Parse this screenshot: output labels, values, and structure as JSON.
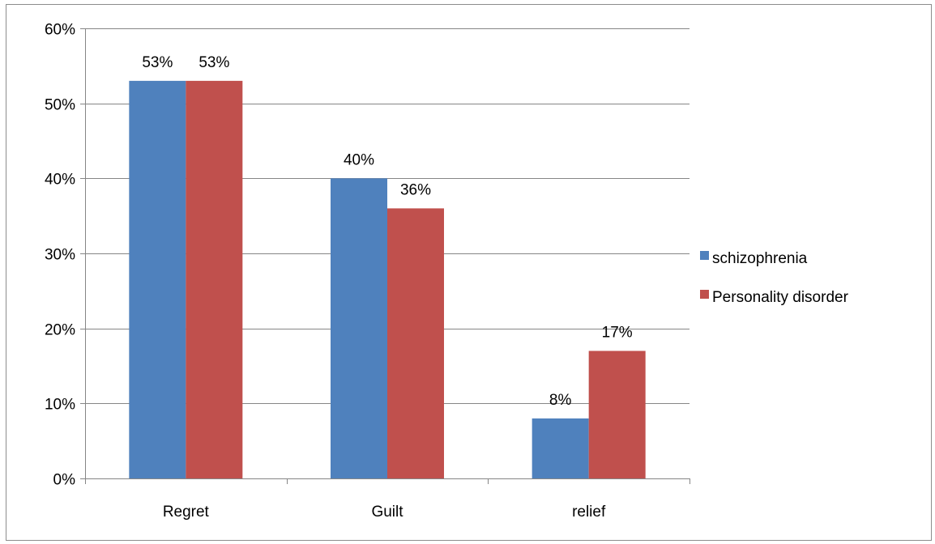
{
  "chart_data": {
    "type": "bar",
    "title": "",
    "xlabel": "",
    "ylabel": "",
    "categories": [
      "Regret",
      "Guilt",
      "relief"
    ],
    "series": [
      {
        "name": "schizophrenia",
        "color": "#4f81bd",
        "values": [
          53,
          40,
          8
        ],
        "labels": [
          "53%",
          "40%",
          "8%"
        ]
      },
      {
        "name": "Personality disorder",
        "color": "#c0504d",
        "values": [
          53,
          36,
          17
        ],
        "labels": [
          "53%",
          "36%",
          "17%"
        ]
      }
    ],
    "ylim": [
      0,
      60
    ],
    "yticks": [
      0,
      10,
      20,
      30,
      40,
      50,
      60
    ],
    "ytick_labels": [
      "0%",
      "10%",
      "20%",
      "30%",
      "40%",
      "50%",
      "60%"
    ],
    "grid": true,
    "gridline_color": "#868686",
    "legend_position": "right"
  }
}
